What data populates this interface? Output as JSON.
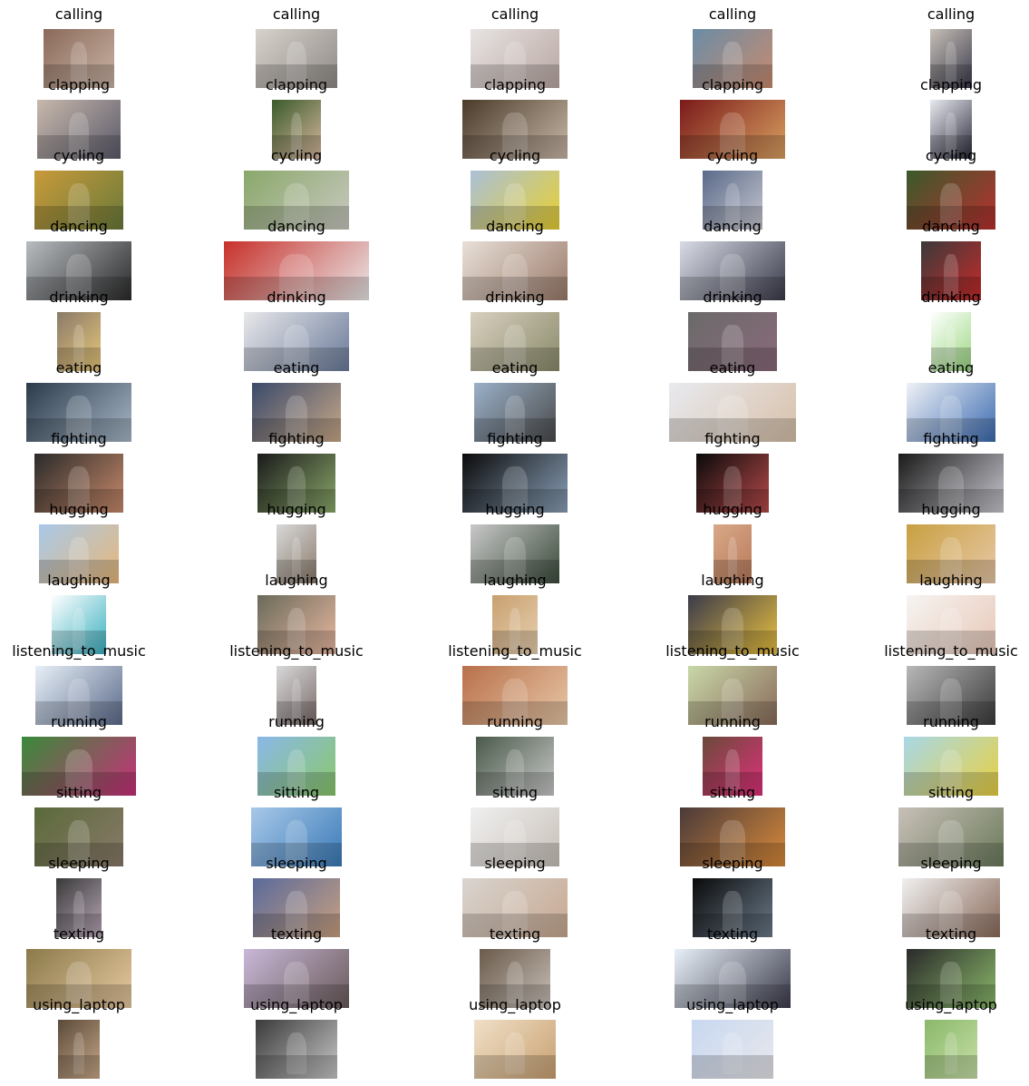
{
  "grid": {
    "rows": [
      {
        "label": "calling",
        "colors": [
          [
            "#8a6a5a",
            "#c9b3a4"
          ],
          [
            "#d8d2cc",
            "#8f8a86"
          ],
          [
            "#e8e4e2",
            "#b8a6a2"
          ],
          [
            "#6a8ca6",
            "#c98b6e"
          ],
          [
            "#c7bfb7",
            "#3a3a4a"
          ]
        ]
      },
      {
        "label": "clapping",
        "colors": [
          [
            "#c8b8ac",
            "#5a5a6a"
          ],
          [
            "#3a5a2a",
            "#d8b8a0"
          ],
          [
            "#4a3a2a",
            "#c8b8a8"
          ],
          [
            "#7a1a1a",
            "#d8a060"
          ],
          [
            "#e8eaf0",
            "#2a2a3a"
          ]
        ]
      },
      {
        "label": "cycling",
        "colors": [
          [
            "#c89a3a",
            "#6a7a3a"
          ],
          [
            "#8aa86a",
            "#c8c8c0"
          ],
          [
            "#aac0d8",
            "#e8d030"
          ],
          [
            "#5a6a8a",
            "#c8c8d0"
          ],
          [
            "#3a5a2a",
            "#b83030"
          ]
        ]
      },
      {
        "label": "dancing",
        "colors": [
          [
            "#b8bcc0",
            "#2a2a2a"
          ],
          [
            "#c8302a",
            "#e8e8e8"
          ],
          [
            "#e8e0d8",
            "#9a7a6a"
          ],
          [
            "#d8dce6",
            "#3a3a4a"
          ],
          [
            "#3a3a3a",
            "#c82a2a"
          ]
        ]
      },
      {
        "label": "drinking",
        "colors": [
          [
            "#8a7a6a",
            "#e8c87a"
          ],
          [
            "#e8e8ea",
            "#6a7a9a"
          ],
          [
            "#d8d0c0",
            "#8a8a6a"
          ],
          [
            "#6a6a6a",
            "#8a6a7a"
          ],
          [
            "#ffffff",
            "#9ad880"
          ]
        ]
      },
      {
        "label": "eating",
        "colors": [
          [
            "#2a3a4a",
            "#a8b8c8"
          ],
          [
            "#3a4a6a",
            "#c8a888"
          ],
          [
            "#9ab0c8",
            "#4a4a4a"
          ],
          [
            "#e8eaf0",
            "#d8c0a8"
          ],
          [
            "#f0f2f6",
            "#3a6ab0"
          ]
        ]
      },
      {
        "label": "fighting",
        "colors": [
          [
            "#2a2a2a",
            "#c88a6a"
          ],
          [
            "#1a1a1a",
            "#8aa86a"
          ],
          [
            "#0a0a0a",
            "#8aa0b8"
          ],
          [
            "#0a0a0a",
            "#b84a4a"
          ],
          [
            "#1a1a1a",
            "#c8c8d0"
          ]
        ]
      },
      {
        "label": "hugging",
        "colors": [
          [
            "#a8c8e8",
            "#e8b87a"
          ],
          [
            "#d8d8d8",
            "#8a7a6a"
          ],
          [
            "#c8c8c8",
            "#3a4a3a"
          ],
          [
            "#d8a888",
            "#b87a5a"
          ],
          [
            "#c8a040",
            "#e8c8a8"
          ]
        ]
      },
      {
        "label": "laughing",
        "colors": [
          [
            "#ffffff",
            "#3ab0c0"
          ],
          [
            "#6a6a5a",
            "#e8b8a0"
          ],
          [
            "#c8a070",
            "#e8d0b0"
          ],
          [
            "#3a3a4a",
            "#e8c040"
          ],
          [
            "#f6f4f2",
            "#e8c8b8"
          ]
        ]
      },
      {
        "label": "listening_to_music",
        "colors": [
          [
            "#e8f0f8",
            "#5a6a8a"
          ],
          [
            "#d8d8d8",
            "#7a6a6a"
          ],
          [
            "#b8704a",
            "#e8c8a8"
          ],
          [
            "#c8d8a8",
            "#8a6a5a"
          ],
          [
            "#b8b8b8",
            "#3a3a3a"
          ]
        ]
      },
      {
        "label": "running",
        "colors": [
          [
            "#3a8a3a",
            "#c8307a"
          ],
          [
            "#8ab8e8",
            "#8ac86a"
          ],
          [
            "#4a5a4a",
            "#c8c8c8"
          ],
          [
            "#6a4a3a",
            "#e0307a"
          ],
          [
            "#a8d8e8",
            "#e8d040"
          ]
        ]
      },
      {
        "label": "sitting",
        "colors": [
          [
            "#5a6a3a",
            "#8a7a6a"
          ],
          [
            "#a8c8e8",
            "#3a7ab8"
          ],
          [
            "#f0f0f0",
            "#c8c0b8"
          ],
          [
            "#4a3a3a",
            "#d88a3a"
          ],
          [
            "#c8c0b8",
            "#6a7a5a"
          ]
        ]
      },
      {
        "label": "sleeping",
        "colors": [
          [
            "#3a3a3a",
            "#b8a8b8"
          ],
          [
            "#5a6a9a",
            "#c8a080"
          ],
          [
            "#d8d4d0",
            "#c8a890"
          ],
          [
            "#0a0a0a",
            "#6a7a8a"
          ],
          [
            "#f0f0f0",
            "#8a6a5a"
          ]
        ]
      },
      {
        "label": "texting",
        "colors": [
          [
            "#8a7a4a",
            "#e8c8a0"
          ],
          [
            "#c8b8d8",
            "#6a5a5a"
          ],
          [
            "#6a5a4a",
            "#c8c0b8"
          ],
          [
            "#e8f0f8",
            "#3a3a4a"
          ],
          [
            "#2a2a2a",
            "#8ab86a"
          ]
        ]
      },
      {
        "label": "using_laptop",
        "colors": [
          [
            "#5a4a3a",
            "#c8a888"
          ],
          [
            "#3a3a3a",
            "#c8c8c8"
          ],
          [
            "#f0e0c8",
            "#c8a070"
          ],
          [
            "#c8d8f0",
            "#e8e8ec"
          ],
          [
            "#8ab86a",
            "#c8e0a8"
          ]
        ]
      }
    ]
  }
}
